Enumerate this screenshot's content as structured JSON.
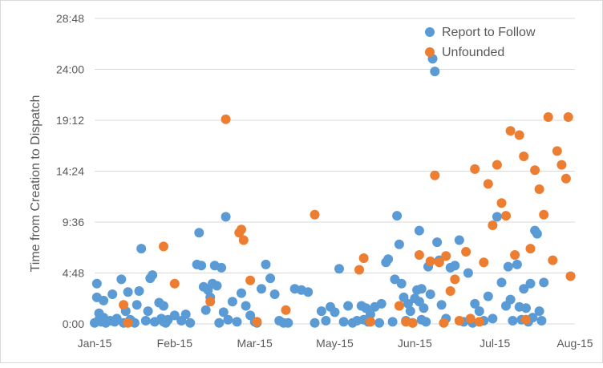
{
  "chart_data": {
    "type": "scatter",
    "title": "",
    "xlabel": "",
    "ylabel": "Time from Creation to Dispatch",
    "x_ticks": [
      "Jan-15",
      "Feb-15",
      "Mar-15",
      "May-15",
      "Jun-15",
      "Jul-15",
      "Aug-15"
    ],
    "y_ticks": [
      "0:00",
      "4:48",
      "9:36",
      "14:24",
      "19:12",
      "24:00",
      "28:48"
    ],
    "y_unit": "hours",
    "xlim": [
      "2015-01-01",
      "2015-08-05"
    ],
    "ylim": [
      0,
      28.8
    ],
    "grid": "horizontal only",
    "legend": "top-right",
    "series": [
      {
        "name": "Report to Follow",
        "color": "#5B9BD5",
        "x": [
          "2015-01-01",
          "2015-01-02",
          "2015-01-02",
          "2015-01-03",
          "2015-01-03",
          "2015-01-04",
          "2015-01-05",
          "2015-01-05",
          "2015-01-06",
          "2015-01-08",
          "2015-01-09",
          "2015-01-10",
          "2015-01-11",
          "2015-01-13",
          "2015-01-14",
          "2015-01-15",
          "2015-01-16",
          "2015-01-17",
          "2015-01-18",
          "2015-01-19",
          "2015-01-20",
          "2015-01-21",
          "2015-01-22",
          "2015-01-24",
          "2015-01-25",
          "2015-01-26",
          "2015-01-27",
          "2015-01-28",
          "2015-01-30",
          "2015-01-31",
          "2015-02-01",
          "2015-02-01",
          "2015-02-02",
          "2015-02-03",
          "2015-02-06",
          "2015-02-09",
          "2015-02-11",
          "2015-02-13",
          "2015-02-16",
          "2015-02-17",
          "2015-02-18",
          "2015-02-19",
          "2015-02-20",
          "2015-02-21",
          "2015-02-22",
          "2015-02-23",
          "2015-02-24",
          "2015-02-25",
          "2015-02-26",
          "2015-02-27",
          "2015-02-28",
          "2015-03-01",
          "2015-03-02",
          "2015-03-04",
          "2015-03-06",
          "2015-03-08",
          "2015-03-10",
          "2015-03-12",
          "2015-03-14",
          "2015-03-15",
          "2015-03-17",
          "2015-03-19",
          "2015-03-21",
          "2015-03-23",
          "2015-03-25",
          "2015-03-27",
          "2015-03-29",
          "2015-04-01",
          "2015-04-04",
          "2015-04-07",
          "2015-04-10",
          "2015-04-13",
          "2015-04-15",
          "2015-04-17",
          "2015-04-19",
          "2015-04-21",
          "2015-04-23",
          "2015-04-25",
          "2015-04-27",
          "2015-04-29",
          "2015-05-01",
          "2015-05-02",
          "2015-05-03",
          "2015-05-04",
          "2015-05-05",
          "2015-05-07",
          "2015-05-09",
          "2015-05-10",
          "2015-05-12",
          "2015-05-13",
          "2015-05-15",
          "2015-05-16",
          "2015-05-17",
          "2015-05-18",
          "2015-05-19",
          "2015-05-20",
          "2015-05-21",
          "2015-05-22",
          "2015-05-23",
          "2015-05-24",
          "2015-05-25",
          "2015-05-26",
          "2015-05-27",
          "2015-05-27",
          "2015-05-28",
          "2015-05-28",
          "2015-05-29",
          "2015-05-30",
          "2015-05-31",
          "2015-06-01",
          "2015-06-02",
          "2015-06-03",
          "2015-06-04",
          "2015-06-05",
          "2015-06-06",
          "2015-06-08",
          "2015-06-10",
          "2015-06-12",
          "2015-06-14",
          "2015-06-16",
          "2015-06-18",
          "2015-06-20",
          "2015-06-21",
          "2015-06-23",
          "2015-06-25",
          "2015-06-27",
          "2015-06-29",
          "2015-07-01",
          "2015-07-03",
          "2015-07-05",
          "2015-07-06",
          "2015-07-07",
          "2015-07-08",
          "2015-07-10",
          "2015-07-11",
          "2015-07-12",
          "2015-07-13",
          "2015-07-14",
          "2015-07-15",
          "2015-07-16",
          "2015-07-17",
          "2015-07-18",
          "2015-07-19",
          "2015-07-20",
          "2015-07-21",
          "2015-07-22"
        ],
        "y": [
          0.1,
          2.5,
          3.8,
          0.4,
          1.0,
          0.2,
          2.2,
          0.6,
          0.1,
          0.3,
          2.8,
          0.2,
          0.5,
          4.2,
          0.1,
          1.2,
          3.0,
          0.4,
          0.2,
          0.1,
          1.8,
          3.1,
          7.1,
          0.3,
          1.2,
          4.3,
          4.6,
          0.2,
          2.0,
          0.5,
          0.2,
          1.7,
          0.1,
          0.4,
          0.8,
          0.3,
          0.9,
          0.1,
          5.6,
          8.6,
          5.5,
          3.5,
          1.3,
          3.2,
          2.5,
          3.8,
          5.5,
          3.6,
          0.1,
          5.3,
          1.1,
          10.1,
          0.4,
          2.1,
          0.2,
          2.9,
          1.7,
          0.8,
          0.2,
          0.1,
          3.3,
          5.6,
          4.3,
          2.8,
          0.3,
          0.1,
          0.1,
          3.3,
          3.2,
          3.0,
          0.1,
          1.2,
          0.3,
          1.6,
          1.1,
          5.2,
          0.2,
          1.7,
          0.1,
          0.3,
          1.7,
          0.4,
          1.5,
          0.2,
          0.9,
          1.6,
          0.1,
          1.9,
          5.8,
          6.1,
          0.2,
          4.2,
          10.2,
          7.5,
          3.8,
          2.5,
          0.3,
          1.9,
          1.2,
          0.1,
          2.4,
          3.2,
          8.8,
          2.1,
          0.4,
          3.3,
          1.5,
          0.2,
          5.4,
          2.8,
          25.0,
          23.8,
          7.7,
          6.0,
          1.8,
          0.5,
          5.3,
          5.5,
          7.9,
          0.2,
          4.8,
          0.1,
          1.9,
          1.2,
          0.3,
          2.6,
          0.5,
          10.1,
          3.9,
          1.7,
          5.4,
          2.3,
          0.3,
          5.6,
          1.6,
          0.4,
          3.3,
          1.5,
          0.2,
          3.8,
          0.6,
          8.8,
          8.5,
          1.2,
          0.3,
          3.9
        ]
      },
      {
        "name": "Unfounded",
        "color": "#ED7D31",
        "x": [
          "2015-01-14",
          "2015-01-16",
          "2015-02-01",
          "2015-02-06",
          "2015-02-22",
          "2015-03-01",
          "2015-03-07",
          "2015-03-08",
          "2015-03-09",
          "2015-03-12",
          "2015-03-15",
          "2015-03-28",
          "2015-04-10",
          "2015-04-30",
          "2015-05-02",
          "2015-05-05",
          "2015-05-18",
          "2015-05-21",
          "2015-05-24",
          "2015-05-27",
          "2015-06-01",
          "2015-06-03",
          "2015-06-05",
          "2015-06-07",
          "2015-06-08",
          "2015-06-10",
          "2015-06-12",
          "2015-06-14",
          "2015-06-17",
          "2015-06-19",
          "2015-06-21",
          "2015-06-23",
          "2015-06-25",
          "2015-06-27",
          "2015-06-29",
          "2015-07-01",
          "2015-07-03",
          "2015-07-05",
          "2015-07-07",
          "2015-07-09",
          "2015-07-11",
          "2015-07-13",
          "2015-07-14",
          "2015-07-16",
          "2015-07-18",
          "2015-07-20",
          "2015-07-22",
          "2015-07-24",
          "2015-07-26",
          "2015-07-28",
          "2015-07-30",
          "2015-08-01",
          "2015-08-02",
          "2015-08-03"
        ],
        "y": [
          1.8,
          0.1,
          7.3,
          3.8,
          2.1,
          19.3,
          8.6,
          8.9,
          7.9,
          4.1,
          0.2,
          1.3,
          10.3,
          5.1,
          6.2,
          0.2,
          1.7,
          0.2,
          0.1,
          6.5,
          5.9,
          14.0,
          5.8,
          0.1,
          6.4,
          3.1,
          4.2,
          0.3,
          6.8,
          0.5,
          14.6,
          0.2,
          5.8,
          13.2,
          9.3,
          15.0,
          11.4,
          10.2,
          18.2,
          6.5,
          17.8,
          15.8,
          0.4,
          7.1,
          14.5,
          12.7,
          10.3,
          19.5,
          6.0,
          16.3,
          15.0,
          13.7,
          19.5,
          4.5
        ]
      }
    ]
  }
}
